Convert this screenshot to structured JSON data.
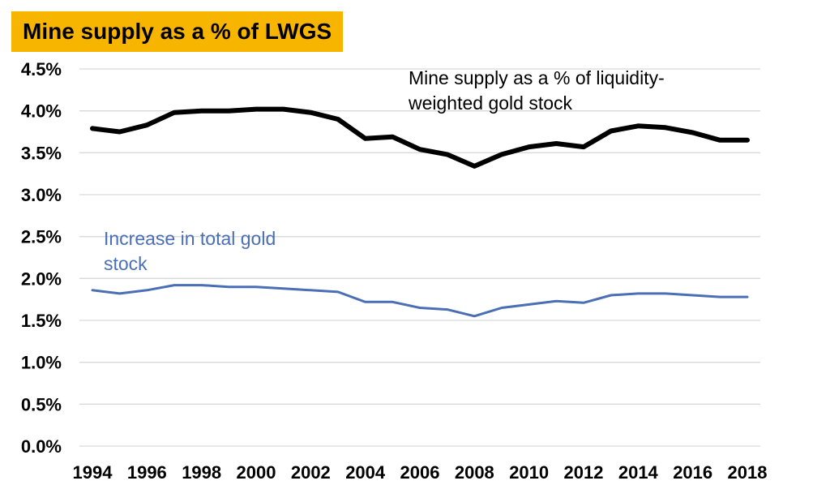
{
  "title": "Mine supply as a % of LWGS",
  "colors": {
    "title_bg": "#F7B500",
    "series_black": "#000000",
    "series_blue": "#4A6FB5",
    "grid": "#D9D9D9"
  },
  "chart_data": {
    "type": "line",
    "title": "Mine supply as a % of LWGS",
    "xlabel": "",
    "ylabel": "",
    "x": [
      1994,
      1995,
      1996,
      1997,
      1998,
      1999,
      2000,
      2001,
      2002,
      2003,
      2004,
      2005,
      2006,
      2007,
      2008,
      2009,
      2010,
      2011,
      2012,
      2013,
      2014,
      2015,
      2016,
      2017,
      2018
    ],
    "x_tick_labels": [
      "1994",
      "1996",
      "1998",
      "2000",
      "2002",
      "2004",
      "2006",
      "2008",
      "2010",
      "2012",
      "2014",
      "2016",
      "2018"
    ],
    "y_tick_labels": [
      "0.0%",
      "0.5%",
      "1.0%",
      "1.5%",
      "2.0%",
      "2.5%",
      "3.0%",
      "3.5%",
      "4.0%",
      "4.5%"
    ],
    "ylim": [
      0,
      4.5
    ],
    "y_unit": "%",
    "grid": true,
    "series": [
      {
        "name": "Mine supply as a % of liquidity-weighted gold stock",
        "name_lines": [
          "Mine supply as a % of liquidity-",
          "weighted gold stock"
        ],
        "color": "#000000",
        "values": [
          3.79,
          3.75,
          3.83,
          3.98,
          4.0,
          4.0,
          4.02,
          4.02,
          3.98,
          3.9,
          3.67,
          3.69,
          3.54,
          3.48,
          3.34,
          3.48,
          3.57,
          3.61,
          3.57,
          3.76,
          3.82,
          3.8,
          3.74,
          3.65,
          3.65
        ]
      },
      {
        "name": "Increase in total gold stock",
        "name_lines": [
          "Increase in total gold",
          "stock"
        ],
        "color": "#4A6FB5",
        "values": [
          1.86,
          1.82,
          1.86,
          1.92,
          1.92,
          1.9,
          1.9,
          1.88,
          1.86,
          1.84,
          1.72,
          1.72,
          1.65,
          1.63,
          1.55,
          1.65,
          1.69,
          1.73,
          1.71,
          1.8,
          1.82,
          1.82,
          1.8,
          1.78,
          1.78
        ]
      }
    ]
  }
}
